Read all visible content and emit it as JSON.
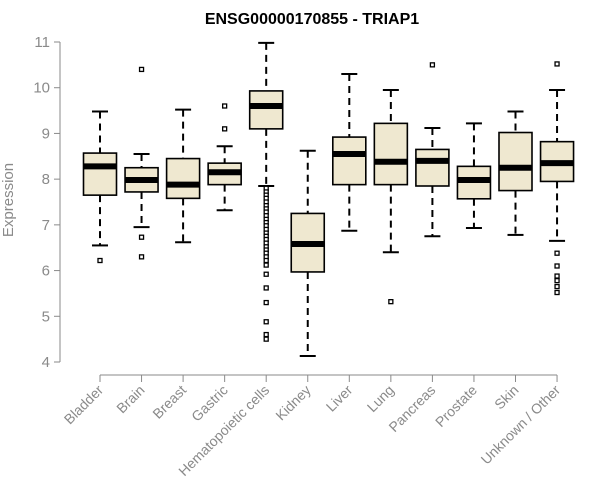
{
  "chart_data": {
    "type": "boxplot",
    "title": "ENSG00000170855 - TRIAP1",
    "xlabel": "",
    "ylabel": "Expression",
    "ylim": [
      4,
      11
    ],
    "yticks": [
      4,
      5,
      6,
      7,
      8,
      9,
      10,
      11
    ],
    "box_fill": "#efe8d0",
    "box_stroke": "#000000",
    "categories": [
      "Bladder",
      "Brain",
      "Breast",
      "Gastric",
      "Hematopoietic cells",
      "Kidney",
      "Liver",
      "Lung",
      "Pancreas",
      "Prostate",
      "Skin",
      "Unknown / Other"
    ],
    "boxes": [
      {
        "q1": 7.65,
        "median": 8.28,
        "q3": 8.57,
        "whisker_low": 6.55,
        "whisker_high": 9.48,
        "outliers": [
          6.22
        ]
      },
      {
        "q1": 7.72,
        "median": 7.98,
        "q3": 8.25,
        "whisker_low": 6.95,
        "whisker_high": 8.55,
        "outliers": [
          10.4,
          6.73,
          6.3
        ]
      },
      {
        "q1": 7.58,
        "median": 7.88,
        "q3": 8.45,
        "whisker_low": 6.62,
        "whisker_high": 9.52,
        "outliers": []
      },
      {
        "q1": 7.88,
        "median": 8.15,
        "q3": 8.35,
        "whisker_low": 7.32,
        "whisker_high": 8.72,
        "outliers": [
          9.6,
          9.1
        ]
      },
      {
        "q1": 9.1,
        "median": 9.6,
        "q3": 9.93,
        "whisker_low": 7.85,
        "whisker_high": 10.98,
        "outliers": [
          7.8,
          7.72,
          7.65,
          7.58,
          7.5,
          7.42,
          7.35,
          7.28,
          7.2,
          7.12,
          7.05,
          6.98,
          6.9,
          6.82,
          6.75,
          6.68,
          6.6,
          6.52,
          6.45,
          6.38,
          6.3,
          6.22,
          6.12,
          5.92,
          5.62,
          5.3,
          4.88,
          4.6,
          4.5
        ]
      },
      {
        "q1": 5.97,
        "median": 6.58,
        "q3": 7.25,
        "whisker_low": 4.13,
        "whisker_high": 8.62,
        "outliers": []
      },
      {
        "q1": 7.88,
        "median": 8.55,
        "q3": 8.92,
        "whisker_low": 6.87,
        "whisker_high": 10.3,
        "outliers": []
      },
      {
        "q1": 7.88,
        "median": 8.38,
        "q3": 9.22,
        "whisker_low": 6.4,
        "whisker_high": 9.95,
        "outliers": [
          5.32
        ]
      },
      {
        "q1": 7.85,
        "median": 8.4,
        "q3": 8.65,
        "whisker_low": 6.75,
        "whisker_high": 9.12,
        "outliers": [
          10.5
        ]
      },
      {
        "q1": 7.57,
        "median": 7.98,
        "q3": 8.28,
        "whisker_low": 6.93,
        "whisker_high": 9.22,
        "outliers": []
      },
      {
        "q1": 7.75,
        "median": 8.25,
        "q3": 9.02,
        "whisker_low": 6.78,
        "whisker_high": 9.48,
        "outliers": []
      },
      {
        "q1": 7.95,
        "median": 8.35,
        "q3": 8.82,
        "whisker_low": 6.65,
        "whisker_high": 9.95,
        "outliers": [
          10.52,
          6.38,
          6.1,
          5.88,
          5.78,
          5.65,
          5.52
        ]
      }
    ]
  }
}
